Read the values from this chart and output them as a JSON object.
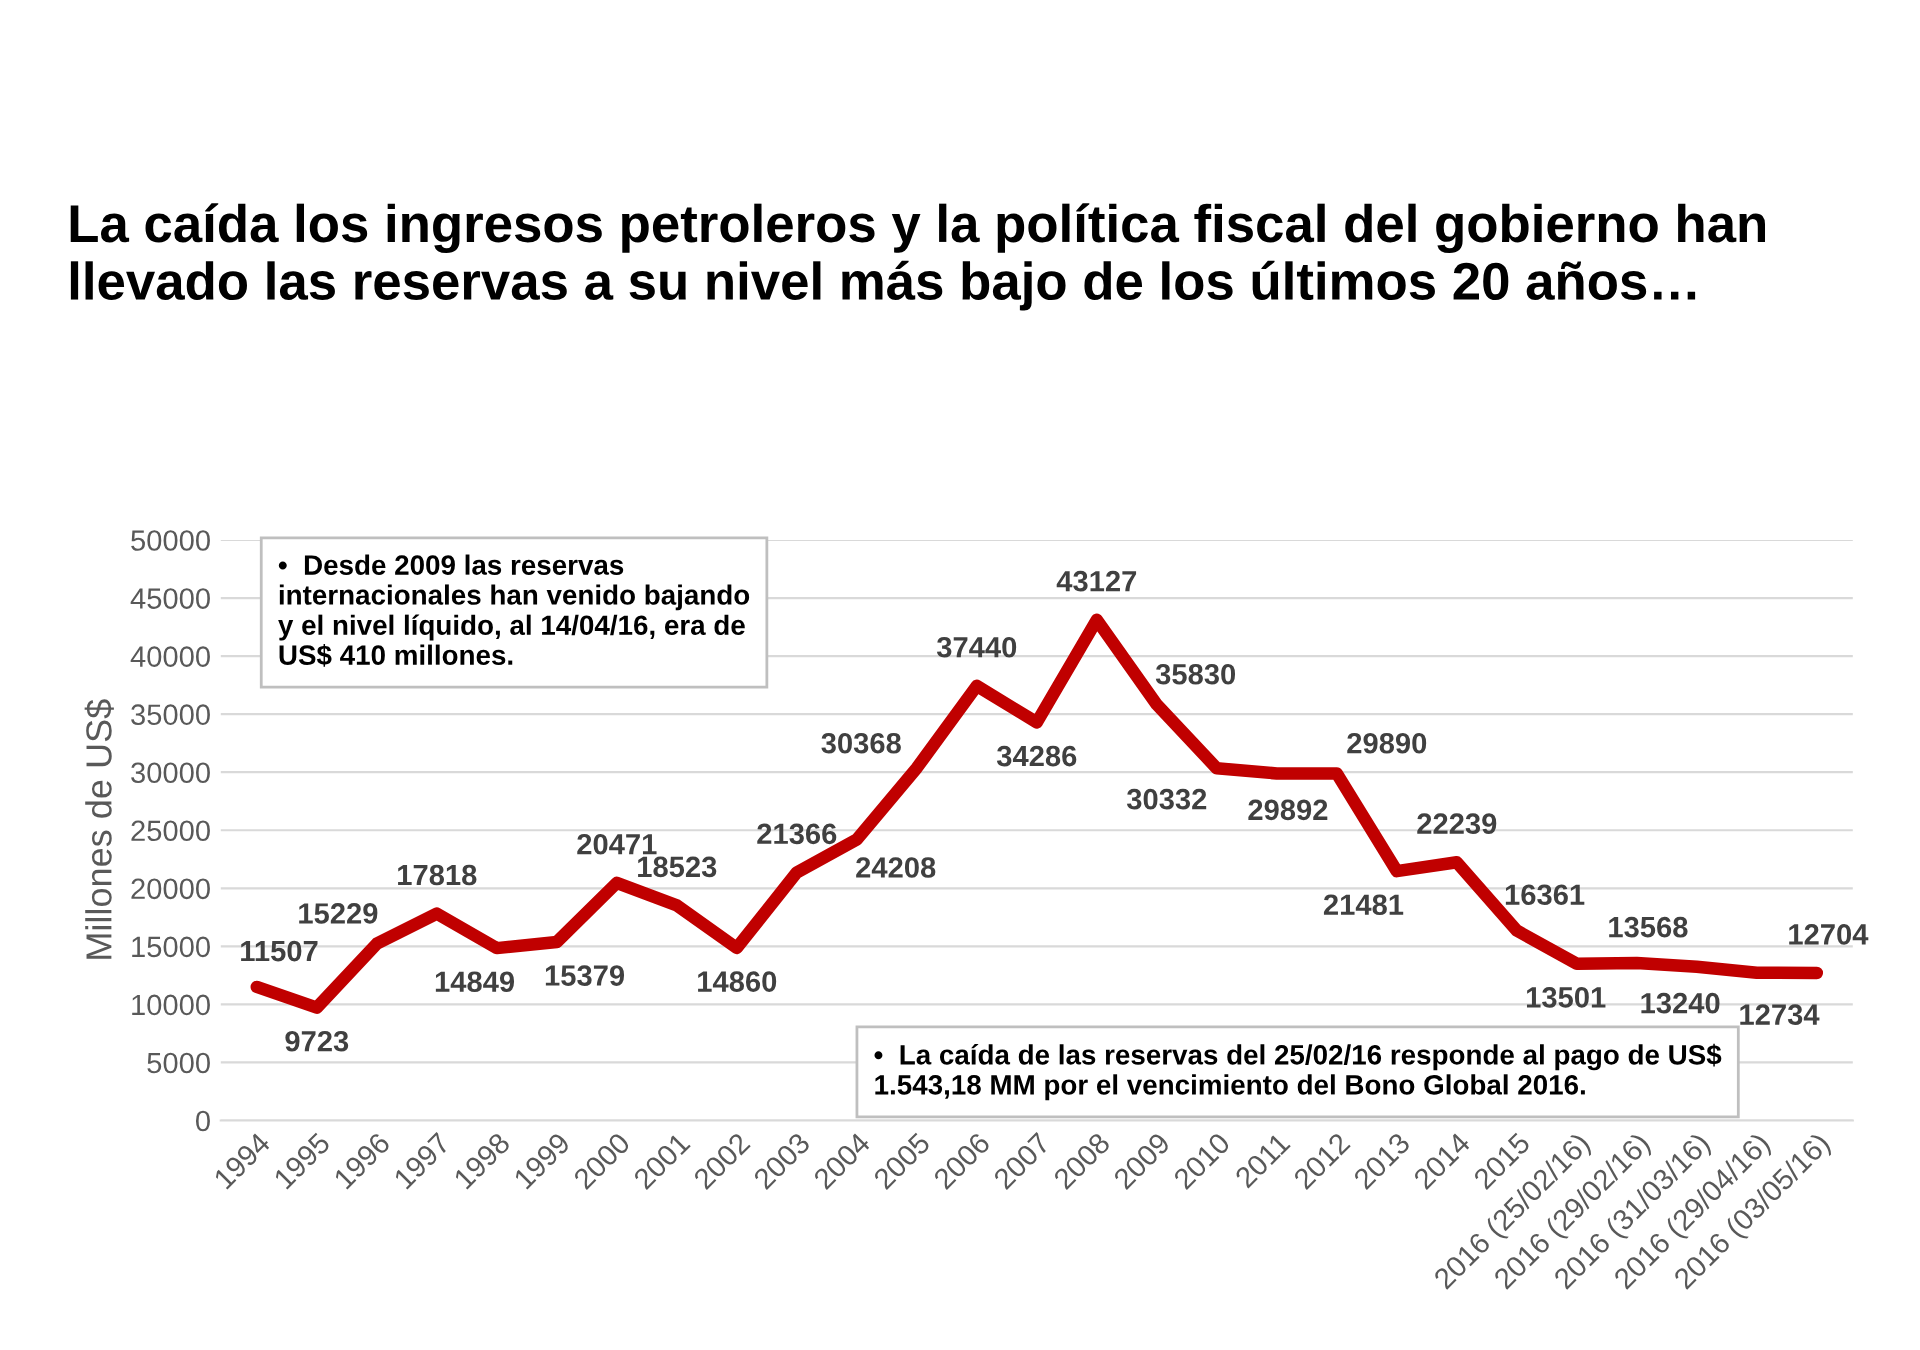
{
  "chart_data": {
    "type": "line",
    "title": "La caída los ingresos petroleros y la política fiscal del gobierno han llevado las reservas a su nivel más bajo de los últimos 20 años…",
    "ylabel": "Millones de US$",
    "categories": [
      "1994",
      "1995",
      "1996",
      "1997",
      "1998",
      "1999",
      "2000",
      "2001",
      "2002",
      "2003",
      "2004",
      "2005",
      "2006",
      "2007",
      "2008",
      "2009",
      "2010",
      "2011",
      "2012",
      "2013",
      "2014",
      "2015",
      "2016 (25/02/16)",
      "2016 (29/02/16)",
      "2016 (31/03/16)",
      "2016 (29/04/16)",
      "2016 (03/05/16)"
    ],
    "series": [
      {
        "color": "#c00000",
        "values": [
          11507,
          9723,
          15229,
          17818,
          14849,
          15379,
          20471,
          18523,
          14860,
          21366,
          24208,
          30368,
          37440,
          34286,
          43127,
          35830,
          30332,
          29892,
          29890,
          21481,
          22239,
          16361,
          13501,
          13568,
          13240,
          12734,
          12704
        ]
      }
    ],
    "ylim": [
      0,
      50000
    ],
    "yticks": [
      0,
      5000,
      10000,
      15000,
      20000,
      25000,
      30000,
      35000,
      40000,
      45000,
      50000
    ],
    "grid": "y",
    "data_labels": true,
    "marker": "none",
    "line_style": "solid",
    "annotations": [
      "•  Desde 2009 las reservas internacionales han venido bajando y el nivel líquido, al 14/04/16, era de US$ 410 millones.",
      "•  La caída de las reservas del 25/02/16 responde al pago de US$ 1.543,18 MM por el vencimiento del Bono Global 2016."
    ]
  }
}
